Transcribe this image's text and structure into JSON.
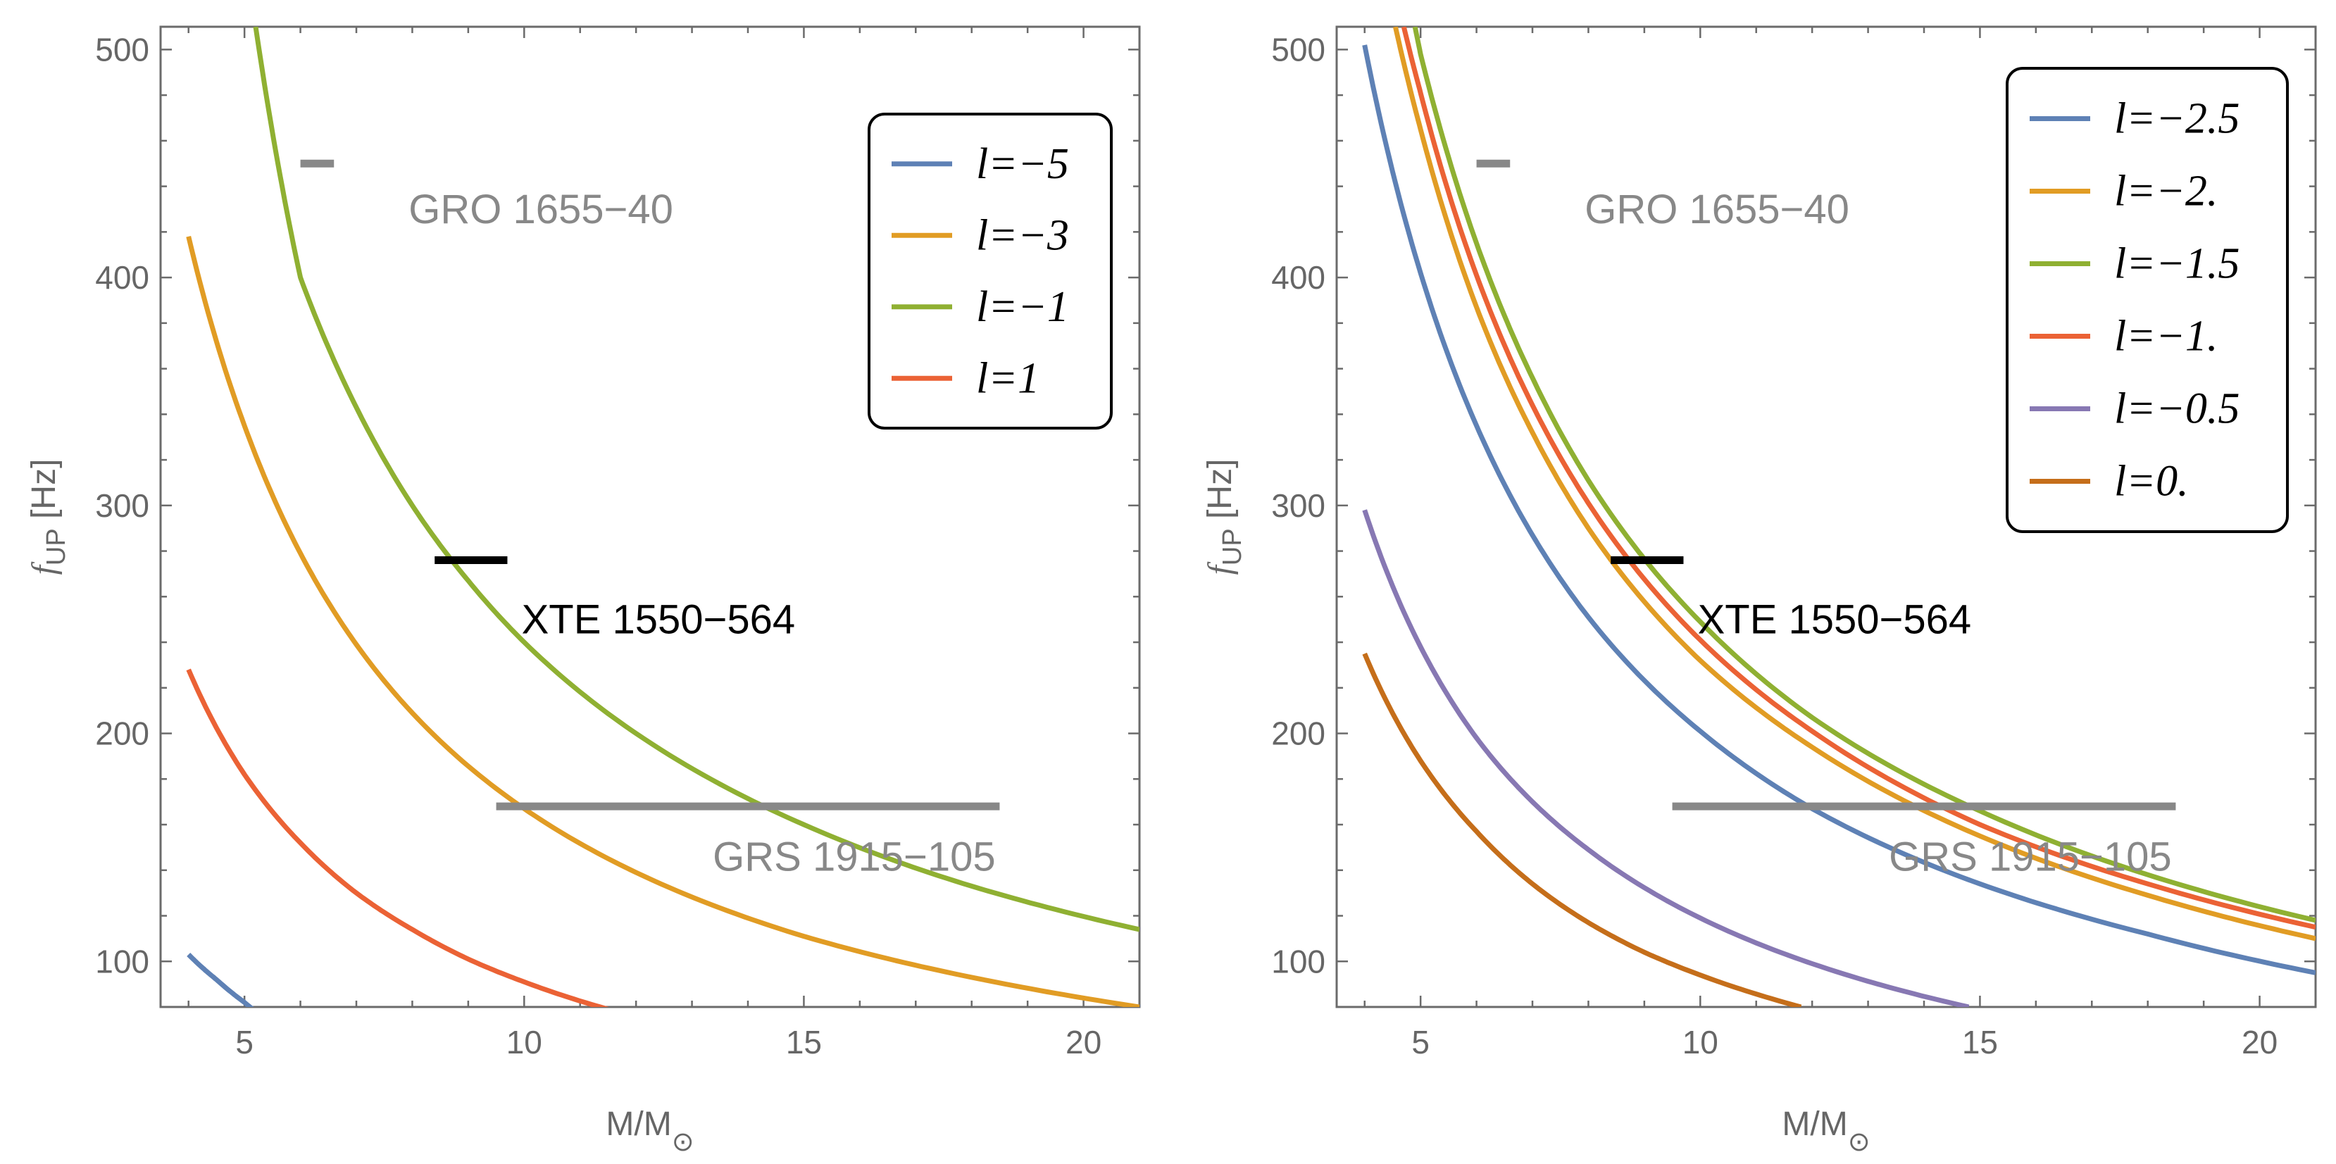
{
  "chart_data": [
    {
      "type": "line",
      "xlabel": "M/M",
      "xlabel_sub": "⊙",
      "ylabel": "f",
      "ylabel_sub": "UP",
      "ylabel_unit": "[Hz]",
      "xlim": [
        3.5,
        21
      ],
      "ylim": [
        80,
        510
      ],
      "xticks": [
        5,
        10,
        15,
        20
      ],
      "yticks": [
        100,
        200,
        300,
        400,
        500
      ],
      "legend": "top-right",
      "grid": false,
      "annotations": [
        {
          "text": "GRO 1655−40",
          "x": 6.3,
          "y": 450,
          "x_range": [
            6.0,
            6.6
          ],
          "color": "#888888",
          "label_x": 10.3,
          "label_y": 430
        },
        {
          "text": "XTE 1550−564",
          "x": 9.1,
          "y": 276,
          "x_range": [
            8.4,
            9.7
          ],
          "color": "#000000",
          "label_x": 12.4,
          "label_y": 250
        },
        {
          "text": "GRS 1915−105",
          "x": 14.0,
          "y": 168,
          "x_range": [
            9.5,
            18.5
          ],
          "color": "#888888",
          "label_x": 15.9,
          "label_y": 146
        }
      ],
      "series": [
        {
          "name": "l=−5",
          "color": "#5E81B5",
          "x": [
            4.0,
            4.5,
            5.0,
            5.2
          ],
          "y": [
            103,
            92,
            82,
            78
          ]
        },
        {
          "name": "l=−3",
          "color": "#E19C24",
          "x": [
            4.0,
            5.0,
            6.0,
            7.0,
            8.0,
            10.0,
            12.0,
            15.0,
            18.0,
            21.0
          ],
          "y": [
            418,
            335,
            279,
            239,
            209,
            167,
            139,
            111,
            93,
            80
          ]
        },
        {
          "name": "l=−1",
          "color": "#8FB032",
          "x": [
            5.2,
            6.0,
            7.0,
            8.0,
            9.0,
            10.0,
            12.0,
            15.0,
            18.0,
            21.0
          ],
          "y": [
            510,
            400,
            343,
            300,
            267,
            240,
            200,
            160,
            133,
            114
          ]
        },
        {
          "name": "l=1",
          "color": "#EB6235",
          "x": [
            4.0,
            5.0,
            6.0,
            7.0,
            8.0,
            9.0,
            10.0,
            11.5
          ],
          "y": [
            228,
            182,
            152,
            130,
            114,
            101,
            91,
            79
          ]
        }
      ]
    },
    {
      "type": "line",
      "xlabel": "M/M",
      "xlabel_sub": "⊙",
      "ylabel": "f",
      "ylabel_sub": "UP",
      "ylabel_unit": "[Hz]",
      "xlim": [
        3.5,
        21
      ],
      "ylim": [
        80,
        510
      ],
      "xticks": [
        5,
        10,
        15,
        20
      ],
      "yticks": [
        100,
        200,
        300,
        400,
        500
      ],
      "legend": "top-right",
      "grid": false,
      "annotations": [
        {
          "text": "GRO 1655−40",
          "x": 6.3,
          "y": 450,
          "x_range": [
            6.0,
            6.6
          ],
          "color": "#888888",
          "label_x": 10.3,
          "label_y": 430
        },
        {
          "text": "XTE 1550−564",
          "x": 9.1,
          "y": 276,
          "x_range": [
            8.4,
            9.7
          ],
          "color": "#000000",
          "label_x": 12.4,
          "label_y": 250
        },
        {
          "text": "GRS 1915−105",
          "x": 14.0,
          "y": 168,
          "x_range": [
            9.5,
            18.5
          ],
          "color": "#888888",
          "label_x": 15.9,
          "label_y": 146
        }
      ],
      "series": [
        {
          "name": "l=−2.5",
          "color": "#5E81B5",
          "x": [
            4.0,
            5.0,
            6.0,
            7.0,
            8.0,
            10.0,
            12.0,
            15.0,
            18.0,
            21.0
          ],
          "y": [
            502,
            402,
            335,
            287,
            251,
            201,
            167,
            134,
            112,
            95
          ]
        },
        {
          "name": "l=−2.",
          "color": "#E19C24",
          "x": [
            4.55,
            5.0,
            6.0,
            7.0,
            8.0,
            10.0,
            12.0,
            15.0,
            18.0,
            21.0
          ],
          "y": [
            510,
            465,
            387,
            332,
            290,
            232,
            194,
            155,
            129,
            110
          ]
        },
        {
          "name": "l=−1.5",
          "color": "#8FB032",
          "x": [
            4.9,
            5.0,
            6.0,
            7.0,
            8.0,
            10.0,
            12.0,
            15.0,
            18.0,
            21.0
          ],
          "y": [
            510,
            498,
            415,
            356,
            311,
            249,
            207,
            166,
            138,
            118
          ]
        },
        {
          "name": "l=−1.",
          "color": "#EB6235",
          "x": [
            4.7,
            5.0,
            6.0,
            7.0,
            8.0,
            10.0,
            12.0,
            15.0,
            18.0,
            21.0
          ],
          "y": [
            510,
            481,
            401,
            344,
            301,
            241,
            201,
            160,
            134,
            115
          ]
        },
        {
          "name": "l=−0.5",
          "color": "#8778B3",
          "x": [
            4.0,
            5.0,
            6.0,
            7.0,
            8.0,
            10.0,
            12.0,
            14.8
          ],
          "y": [
            298,
            238,
            198,
            170,
            149,
            119,
            99,
            80
          ]
        },
        {
          "name": "l=0.",
          "color": "#C56E1A",
          "x": [
            4.0,
            5.0,
            6.0,
            7.0,
            8.0,
            9.0,
            10.0,
            11.8
          ],
          "y": [
            235,
            188,
            157,
            134,
            117,
            104,
            94,
            80
          ]
        }
      ]
    }
  ]
}
